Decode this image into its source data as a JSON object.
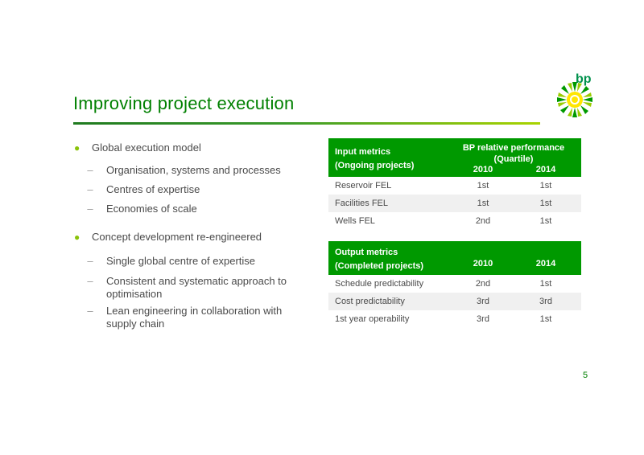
{
  "title": "Improving project execution",
  "logo_text": "bp",
  "bullets": [
    {
      "text": "Global execution model",
      "sub": [
        "Organisation, systems and processes",
        "Centres of expertise",
        "Economies of scale"
      ]
    },
    {
      "text": "Concept development re-engineered",
      "sub": [
        "Single global centre of expertise",
        "Consistent and systematic approach to optimisation",
        "Lean engineering in collaboration with supply chain"
      ]
    }
  ],
  "input_table": {
    "header_line1": "Input metrics",
    "header_line2": "(Ongoing projects)",
    "perf_header": "BP relative performance (Quartile)",
    "col1": "2010",
    "col2": "2014",
    "rows": [
      {
        "label": "Reservoir FEL",
        "v2010": "1st",
        "v2014": "1st"
      },
      {
        "label": "Facilities FEL",
        "v2010": "1st",
        "v2014": "1st"
      },
      {
        "label": "Wells FEL",
        "v2010": "2nd",
        "v2014": "1st"
      }
    ]
  },
  "output_table": {
    "header_line1": "Output metrics",
    "header_line2": "(Completed projects)",
    "col1": "2010",
    "col2": "2014",
    "rows": [
      {
        "label": "Schedule predictability",
        "v2010": "2nd",
        "v2014": "1st"
      },
      {
        "label": "Cost predictability",
        "v2010": "3rd",
        "v2014": "3rd"
      },
      {
        "label": "1st year operability",
        "v2010": "3rd",
        "v2014": "1st"
      }
    ]
  },
  "page_number": "5",
  "colors": {
    "title_green": "#008000",
    "table_header_green": "#009900",
    "bullet_green": "#8ac30a"
  }
}
